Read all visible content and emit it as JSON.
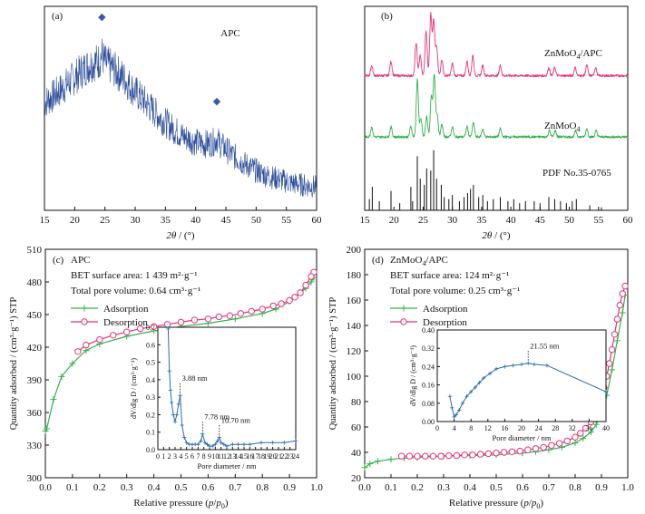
{
  "figure": {
    "colors": {
      "blue": "#2b4d9b",
      "pink": "#e6337a",
      "green": "#33b24a",
      "black": "#111111"
    }
  },
  "chart_data": [
    {
      "id": "a",
      "type": "line",
      "panel_label": "(a)",
      "title": "APC",
      "xlabel": "2θ / (°)",
      "ylabel": "",
      "xlim": [
        15,
        60
      ],
      "xticks": [
        15,
        20,
        25,
        30,
        35,
        40,
        45,
        50,
        55,
        60
      ],
      "grid": false,
      "series": [
        {
          "color": "#2b4d9b",
          "x": [
            15,
            17,
            19,
            21,
            22,
            23,
            24,
            24.5,
            25,
            26,
            27,
            28,
            29,
            30,
            32,
            34,
            36,
            38,
            40,
            41,
            42,
            43,
            43.5,
            44,
            45,
            46,
            48,
            50,
            52,
            54,
            56,
            58,
            60
          ],
          "y": [
            0.55,
            0.6,
            0.66,
            0.72,
            0.75,
            0.77,
            0.78,
            0.82,
            0.77,
            0.75,
            0.72,
            0.69,
            0.65,
            0.61,
            0.54,
            0.47,
            0.41,
            0.36,
            0.33,
            0.32,
            0.32,
            0.33,
            0.35,
            0.32,
            0.29,
            0.26,
            0.21,
            0.17,
            0.14,
            0.12,
            0.1,
            0.09,
            0.08
          ]
        }
      ],
      "markers": [
        {
          "symbol": "◆",
          "x": 24.5
        },
        {
          "symbol": "◆",
          "x": 43.5
        }
      ]
    },
    {
      "id": "b",
      "type": "line",
      "panel_label": "(b)",
      "xlabel": "2θ / (°)",
      "ylabel": "",
      "xlim": [
        15,
        60
      ],
      "xticks": [
        15,
        20,
        25,
        30,
        35,
        40,
        45,
        50,
        55,
        60
      ],
      "grid": false,
      "series": [
        {
          "name": "ZnMoO4/APC",
          "name_main": "ZnMoO",
          "name_sub": "4",
          "name_tail": "/APC",
          "color": "#e6337a",
          "baseline": 0.66,
          "peaks": [
            [
              16.2,
              0.05
            ],
            [
              19.5,
              0.07
            ],
            [
              23.8,
              0.16
            ],
            [
              24.5,
              0.1
            ],
            [
              25.5,
              0.22
            ],
            [
              26.3,
              0.3
            ],
            [
              26.8,
              0.27
            ],
            [
              27.3,
              0.14
            ],
            [
              28.2,
              0.08
            ],
            [
              30,
              0.06
            ],
            [
              32.5,
              0.07
            ],
            [
              33.5,
              0.1
            ],
            [
              35.2,
              0.05
            ],
            [
              38.2,
              0.05
            ],
            [
              46.5,
              0.04
            ],
            [
              47.5,
              0.04
            ],
            [
              51,
              0.04
            ],
            [
              53,
              0.05
            ],
            [
              54.5,
              0.04
            ]
          ]
        },
        {
          "name": "ZnMoO4",
          "name_main": "ZnMoO",
          "name_sub": "4",
          "name_tail": "",
          "color": "#33b24a",
          "baseline": 0.36,
          "peaks": [
            [
              16.2,
              0.05
            ],
            [
              19.5,
              0.05
            ],
            [
              22.9,
              0.05
            ],
            [
              24,
              0.28
            ],
            [
              24.6,
              0.09
            ],
            [
              25.6,
              0.1
            ],
            [
              26.4,
              0.2
            ],
            [
              26.9,
              0.3
            ],
            [
              27.4,
              0.11
            ],
            [
              28.2,
              0.06
            ],
            [
              30,
              0.05
            ],
            [
              32.5,
              0.05
            ],
            [
              33.6,
              0.07
            ],
            [
              35.2,
              0.04
            ],
            [
              38.2,
              0.04
            ],
            [
              46.6,
              0.03
            ],
            [
              47.6,
              0.03
            ],
            [
              51.1,
              0.03
            ],
            [
              53,
              0.04
            ],
            [
              54.6,
              0.03
            ]
          ]
        },
        {
          "name": "PDF No.35-0765",
          "name_main": "PDF No.35-0765",
          "name_sub": "",
          "name_tail": "",
          "color": "#111111",
          "type": "stick",
          "sticks": [
            [
              15.8,
              0.06
            ],
            [
              16.3,
              0.12
            ],
            [
              17.5,
              0.05
            ],
            [
              19.5,
              0.1
            ],
            [
              21,
              0.04
            ],
            [
              22.9,
              0.12
            ],
            [
              23.2,
              0.05
            ],
            [
              24,
              0.27
            ],
            [
              24.5,
              0.16
            ],
            [
              25.2,
              0.13
            ],
            [
              25.6,
              0.21
            ],
            [
              26.3,
              0.2
            ],
            [
              26.8,
              0.3
            ],
            [
              27.3,
              0.16
            ],
            [
              28.1,
              0.13
            ],
            [
              28.6,
              0.07
            ],
            [
              29.4,
              0.06
            ],
            [
              30,
              0.08
            ],
            [
              31.2,
              0.05
            ],
            [
              32,
              0.07
            ],
            [
              32.6,
              0.09
            ],
            [
              33.1,
              0.11
            ],
            [
              33.6,
              0.13
            ],
            [
              34.5,
              0.07
            ],
            [
              35.2,
              0.08
            ],
            [
              36,
              0.05
            ],
            [
              37,
              0.06
            ],
            [
              38.2,
              0.07
            ],
            [
              39.5,
              0.05
            ],
            [
              40.5,
              0.06
            ],
            [
              41.5,
              0.04
            ],
            [
              42.5,
              0.05
            ],
            [
              44,
              0.05
            ],
            [
              45,
              0.04
            ],
            [
              46.5,
              0.07
            ],
            [
              47.5,
              0.06
            ],
            [
              48.5,
              0.05
            ],
            [
              49.5,
              0.04
            ],
            [
              50.5,
              0.05
            ],
            [
              51.2,
              0.06
            ],
            [
              53.5,
              0.03
            ],
            [
              55.5,
              0.02
            ]
          ]
        }
      ]
    },
    {
      "id": "c",
      "type": "line",
      "panel_label": "(c)",
      "sample": "APC",
      "bet_text": "BET surface area: 1 439 m²·g⁻¹",
      "pore_text": "Total pore volume: 0.64 cm³·g⁻¹",
      "xlabel": "Relative pressure (p/p0)",
      "ylabel": "Quantity adsorbed / (cm³·g⁻¹) STP",
      "xlim": [
        0,
        1.0
      ],
      "ylim": [
        300,
        510
      ],
      "xticks": [
        0.0,
        0.1,
        0.2,
        0.3,
        0.4,
        0.5,
        0.6,
        0.7,
        0.8,
        0.9,
        1.0
      ],
      "xtick_labels": [
        "0.0",
        "0.1",
        "0.2",
        "0.3",
        "0.4",
        "0.5",
        "0.6",
        "0.7",
        "0.8",
        "0.9",
        "1.0"
      ],
      "yticks": [
        300,
        330,
        360,
        390,
        420,
        450,
        480,
        510
      ],
      "legend": "upper-left",
      "grid": false,
      "series": [
        {
          "name": "Adsorption",
          "color": "#33b24a",
          "marker": "plus",
          "x": [
            0.0,
            0.005,
            0.03,
            0.06,
            0.1,
            0.15,
            0.2,
            0.3,
            0.4,
            0.5,
            0.6,
            0.7,
            0.8,
            0.85,
            0.9,
            0.93,
            0.96,
            0.98,
            0.99
          ],
          "y": [
            343,
            345,
            372,
            393,
            405,
            417,
            423,
            430,
            435,
            439,
            442,
            446,
            451,
            455,
            462,
            468,
            474,
            480,
            484
          ]
        },
        {
          "name": "Desorption",
          "color": "#e6337a",
          "marker": "circle",
          "x": [
            0.99,
            0.98,
            0.96,
            0.94,
            0.92,
            0.9,
            0.87,
            0.84,
            0.8,
            0.76,
            0.72,
            0.68,
            0.64,
            0.6,
            0.55,
            0.5,
            0.45,
            0.4,
            0.35,
            0.3,
            0.25,
            0.2,
            0.15,
            0.12
          ],
          "y": [
            489,
            485,
            477,
            470,
            466,
            463,
            460,
            458,
            455,
            453,
            451,
            449,
            448,
            446,
            445,
            443,
            441,
            439,
            437,
            434,
            431,
            427,
            422,
            416
          ]
        }
      ],
      "inset": {
        "xlabel": "Pore diameter / nm",
        "ylabel": "dV/dlg D / (cm³·g⁻¹)",
        "xlim": [
          0,
          24
        ],
        "ylim": [
          0,
          0.7
        ],
        "xticks": [
          0,
          1,
          2,
          3,
          4,
          5,
          6,
          7,
          8,
          9,
          10,
          11,
          12,
          13,
          14,
          15,
          16,
          17,
          18,
          19,
          20,
          21,
          22,
          23,
          24
        ],
        "yticks": [
          0.0,
          0.1,
          0.2,
          0.3,
          0.4,
          0.5,
          0.6,
          0.7
        ],
        "ytick_labels": [
          "0.0",
          "0.1",
          "0.2",
          "0.3",
          "0.4",
          "0.5",
          "0.6",
          "0.7"
        ],
        "color": "#2b6cb0",
        "x": [
          1.8,
          2.0,
          2.2,
          2.4,
          2.7,
          3.0,
          3.3,
          3.6,
          3.88,
          4.2,
          4.6,
          5.0,
          5.5,
          6.0,
          6.5,
          7.0,
          7.5,
          7.78,
          8.2,
          8.6,
          9.0,
          9.5,
          10.0,
          10.4,
          10.7,
          11.0,
          11.5,
          12.0,
          13,
          14,
          15,
          16,
          18,
          20,
          22,
          24
        ],
        "y": [
          0.69,
          0.45,
          0.34,
          0.27,
          0.2,
          0.16,
          0.2,
          0.26,
          0.31,
          0.14,
          0.07,
          0.04,
          0.03,
          0.03,
          0.03,
          0.03,
          0.05,
          0.09,
          0.04,
          0.03,
          0.02,
          0.02,
          0.03,
          0.05,
          0.07,
          0.04,
          0.03,
          0.02,
          0.03,
          0.03,
          0.03,
          0.03,
          0.04,
          0.04,
          0.04,
          0.05
        ],
        "annotations": [
          {
            "text": "3.88 nm",
            "x": 3.88,
            "y": 0.31
          },
          {
            "text": "7.78 nm",
            "x": 7.78,
            "y": 0.09
          },
          {
            "text": "10.70 nm",
            "x": 10.7,
            "y": 0.07
          }
        ]
      }
    },
    {
      "id": "d",
      "type": "line",
      "panel_label": "(d)",
      "sample": "ZnMoO4/APC",
      "sample_main": "ZnMoO",
      "sample_sub": "4",
      "sample_tail": "/APC",
      "bet_text": "BET surface area: 124 m²·g⁻¹",
      "pore_text": "Total pore volume: 0.25 cm³·g⁻¹",
      "xlabel": "Relative pressure (p/p0)",
      "ylabel": "Quantity adsorbed / (cm³·g⁻¹) STP",
      "xlim": [
        0,
        1.0
      ],
      "ylim": [
        20,
        200
      ],
      "xticks": [
        0.0,
        0.1,
        0.2,
        0.3,
        0.4,
        0.5,
        0.6,
        0.7,
        0.8,
        0.9,
        1.0
      ],
      "xtick_labels": [
        "0.0",
        "0.1",
        "0.2",
        "0.3",
        "0.4",
        "0.5",
        "0.6",
        "0.7",
        "0.8",
        "0.9",
        "1.0"
      ],
      "yticks": [
        20,
        40,
        60,
        80,
        100,
        120,
        140,
        160,
        180,
        200
      ],
      "legend": "upper-left",
      "grid": false,
      "series": [
        {
          "name": "Adsorption",
          "color": "#33b24a",
          "marker": "plus",
          "x": [
            0.0,
            0.02,
            0.05,
            0.1,
            0.15,
            0.2,
            0.3,
            0.4,
            0.5,
            0.6,
            0.65,
            0.7,
            0.75,
            0.8,
            0.83,
            0.86,
            0.88,
            0.9,
            0.92,
            0.94,
            0.96,
            0.98,
            0.99
          ],
          "y": [
            28,
            31,
            33,
            34.5,
            35.5,
            36,
            37,
            37.5,
            38,
            39.5,
            40.5,
            42,
            44,
            47.5,
            51,
            56,
            62,
            71,
            85,
            105,
            128,
            150,
            164
          ]
        },
        {
          "name": "Desorption",
          "color": "#e6337a",
          "marker": "circle",
          "x": [
            0.99,
            0.98,
            0.97,
            0.96,
            0.95,
            0.94,
            0.93,
            0.92,
            0.91,
            0.9,
            0.88,
            0.86,
            0.84,
            0.82,
            0.8,
            0.77,
            0.74,
            0.71,
            0.68,
            0.65,
            0.62,
            0.59,
            0.56,
            0.53,
            0.5,
            0.47,
            0.44,
            0.41,
            0.38,
            0.35,
            0.32,
            0.29,
            0.26,
            0.23,
            0.2,
            0.17,
            0.14
          ],
          "y": [
            171,
            165,
            156,
            145,
            133,
            121,
            110,
            100,
            91,
            83,
            72,
            64,
            59,
            55,
            52,
            49,
            47,
            45.5,
            44,
            43,
            42,
            41,
            40.5,
            40,
            39.5,
            39,
            38.5,
            38,
            38,
            37.5,
            37.5,
            37,
            37,
            37,
            37,
            37,
            37
          ]
        }
      ],
      "inset": {
        "xlabel": "Pore diameter / nm",
        "ylabel": "dV/dlg D / (cm³·g⁻¹)",
        "xlim": [
          0,
          40
        ],
        "ylim": [
          0,
          0.4
        ],
        "xticks": [
          0,
          4,
          8,
          12,
          16,
          20,
          24,
          28,
          32,
          36,
          40
        ],
        "yticks": [
          0.0,
          0.08,
          0.16,
          0.24,
          0.32,
          0.4
        ],
        "ytick_labels": [
          "0.00",
          "0.08",
          "0.16",
          "0.24",
          "0.32",
          "0.40"
        ],
        "color": "#2b6cb0",
        "x": [
          3.0,
          3.5,
          4.0,
          4.5,
          5.2,
          6.0,
          7.0,
          8.0,
          9.0,
          10.0,
          11.0,
          12.5,
          14.0,
          16.0,
          18.0,
          20.0,
          21.55,
          23.0,
          26.0,
          40.0
        ],
        "y": [
          0.11,
          0.06,
          0.02,
          0.03,
          0.05,
          0.08,
          0.11,
          0.13,
          0.15,
          0.17,
          0.19,
          0.21,
          0.23,
          0.24,
          0.245,
          0.25,
          0.255,
          0.25,
          0.245,
          0.13
        ],
        "annotations": [
          {
            "text": "21.55 nm",
            "x": 21.55,
            "y": 0.255
          }
        ]
      }
    }
  ]
}
